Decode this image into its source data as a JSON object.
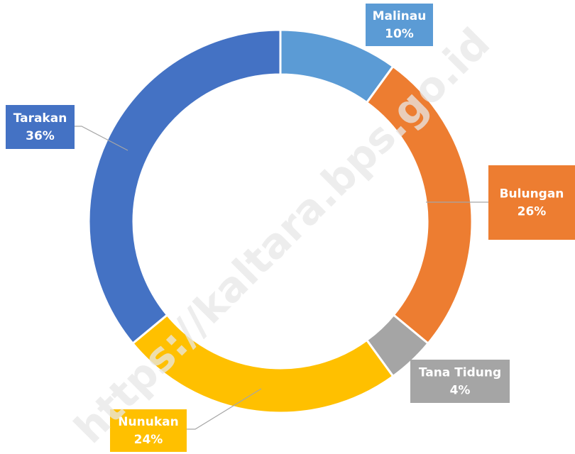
{
  "chart_data": {
    "type": "donut",
    "categories": [
      "Malinau",
      "Bulungan",
      "Tana Tidung",
      "Nunukan",
      "Tarakan"
    ],
    "values": [
      10,
      26,
      4,
      24,
      36
    ],
    "value_labels": [
      "10%",
      "26%",
      "4%",
      "24%",
      "36%"
    ],
    "colors": [
      "#5b9bd5",
      "#ed7d31",
      "#a5a5a5",
      "#ffc000",
      "#4472c4"
    ],
    "watermark": "https://kaltara.bps.go.id"
  }
}
